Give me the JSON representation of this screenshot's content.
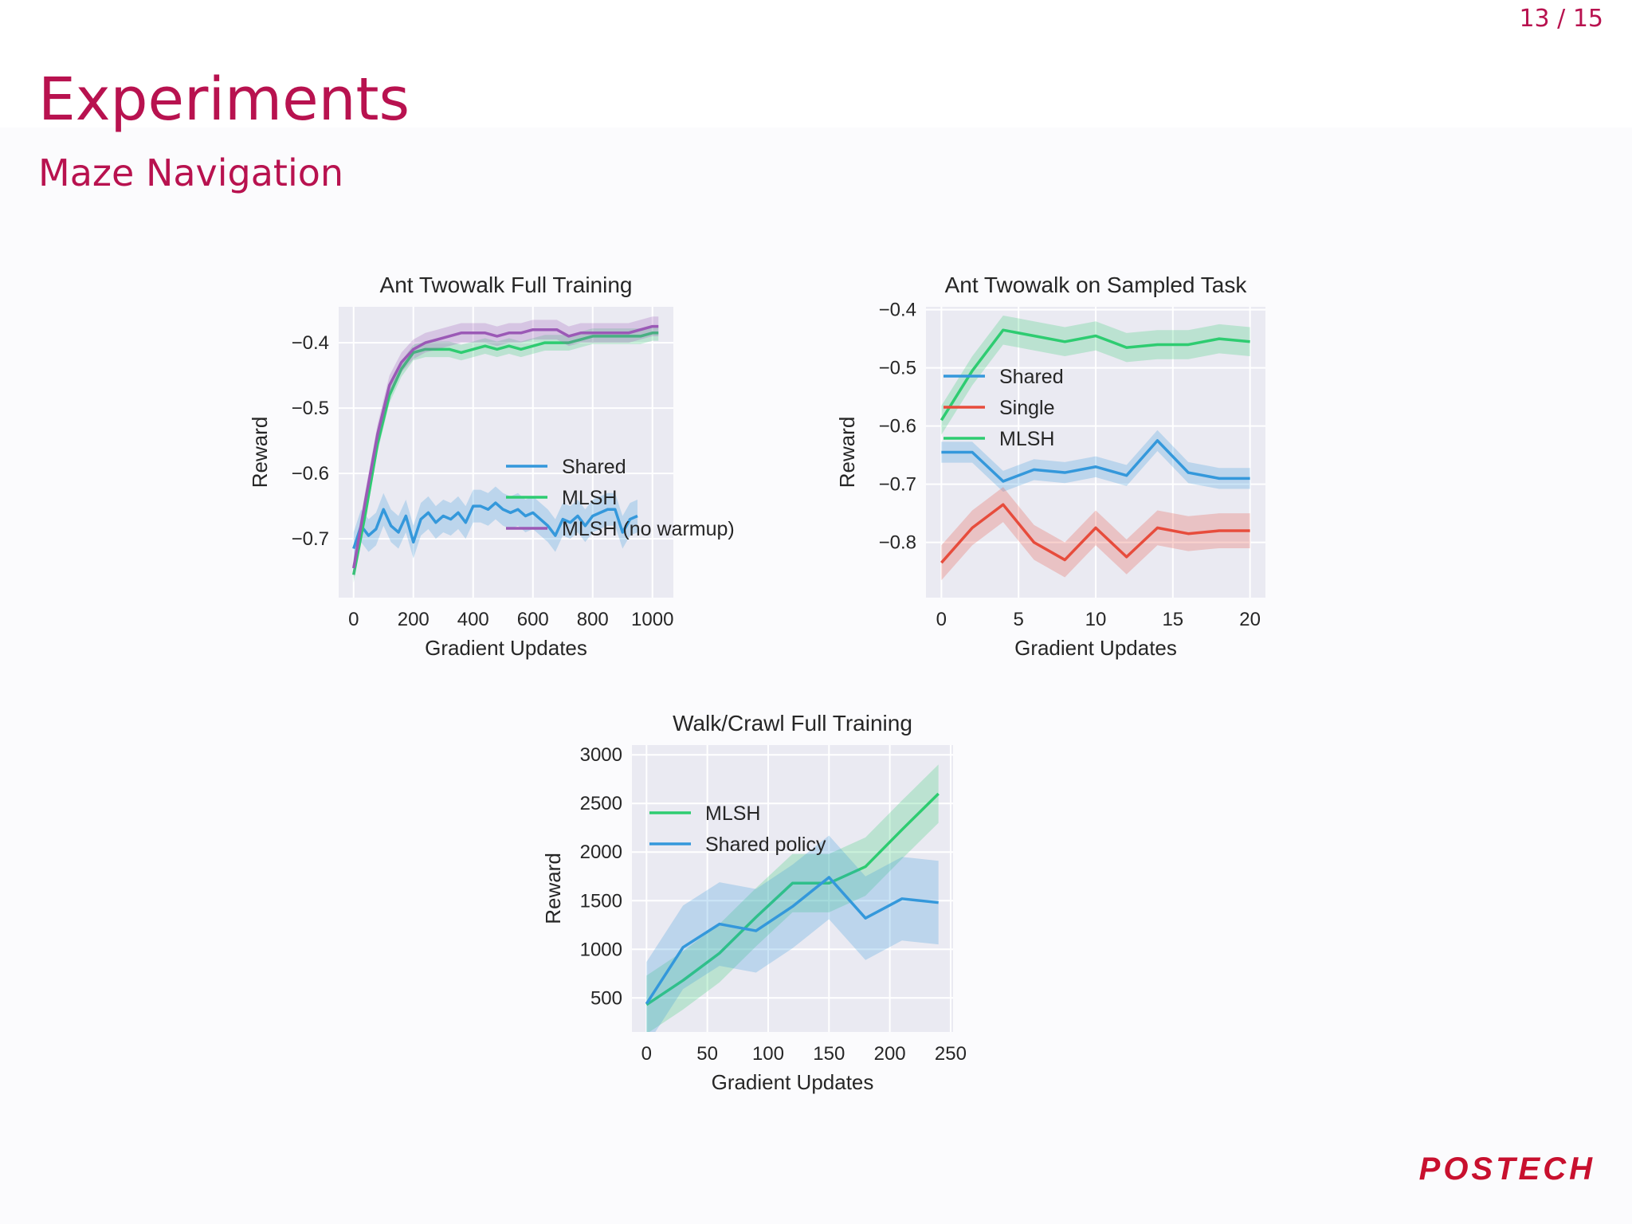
{
  "header": {
    "page_number": "13 / 15",
    "title": "Experiments",
    "subtitle": "Maze Navigation"
  },
  "footer": {
    "logo_text": "POSTECH"
  },
  "colors": {
    "shared": "#3498db",
    "mlsh": "#2ecc71",
    "mlsh_nowarmup": "#9b59b6",
    "single": "#e74c3c",
    "brand": "#b8124f"
  },
  "chart_data": [
    {
      "type": "line",
      "title": "Ant Twowalk Full Training",
      "xlabel": "Gradient Updates",
      "ylabel": "Reward",
      "xlim": [
        -50,
        1070
      ],
      "ylim": [
        -0.79,
        -0.345
      ],
      "xticks": [
        0,
        200,
        400,
        600,
        800,
        1000
      ],
      "yticks": [
        -0.4,
        -0.5,
        -0.6,
        -0.7
      ],
      "xtick_labels": [
        "0",
        "200",
        "400",
        "600",
        "800",
        "1000"
      ],
      "ytick_labels": [
        "−0.4",
        "−0.5",
        "−0.6",
        "−0.7"
      ],
      "legend": "center-right",
      "series": [
        {
          "name": "Shared",
          "color": "#3498db",
          "x": [
            0,
            25,
            50,
            75,
            100,
            125,
            150,
            175,
            200,
            225,
            250,
            275,
            300,
            325,
            350,
            375,
            400,
            425,
            450,
            475,
            500,
            525,
            550,
            575,
            600,
            625,
            650,
            675,
            700,
            725,
            750,
            775,
            800,
            825,
            850,
            875,
            900,
            925,
            950
          ],
          "y": [
            -0.715,
            -0.68,
            -0.695,
            -0.685,
            -0.655,
            -0.68,
            -0.69,
            -0.665,
            -0.705,
            -0.67,
            -0.66,
            -0.675,
            -0.665,
            -0.67,
            -0.66,
            -0.675,
            -0.65,
            -0.65,
            -0.655,
            -0.645,
            -0.655,
            -0.66,
            -0.655,
            -0.665,
            -0.66,
            -0.67,
            -0.68,
            -0.695,
            -0.67,
            -0.675,
            -0.665,
            -0.68,
            -0.665,
            -0.66,
            -0.655,
            -0.655,
            -0.69,
            -0.67,
            -0.665
          ],
          "band": 0.025
        },
        {
          "name": "MLSH",
          "color": "#2ecc71",
          "x": [
            0,
            40,
            80,
            120,
            160,
            200,
            240,
            280,
            320,
            360,
            400,
            440,
            480,
            520,
            560,
            600,
            640,
            680,
            720,
            760,
            800,
            840,
            880,
            920,
            960,
            1000,
            1020
          ],
          "y": [
            -0.755,
            -0.66,
            -0.555,
            -0.48,
            -0.44,
            -0.415,
            -0.41,
            -0.41,
            -0.41,
            -0.415,
            -0.41,
            -0.405,
            -0.41,
            -0.405,
            -0.41,
            -0.405,
            -0.4,
            -0.4,
            -0.4,
            -0.395,
            -0.39,
            -0.39,
            -0.39,
            -0.39,
            -0.39,
            -0.385,
            -0.385
          ],
          "band": 0.012
        },
        {
          "name": "MLSH (no warmup)",
          "color": "#9b59b6",
          "x": [
            0,
            40,
            80,
            120,
            160,
            200,
            240,
            280,
            320,
            360,
            400,
            440,
            480,
            520,
            560,
            600,
            640,
            680,
            720,
            760,
            800,
            840,
            880,
            920,
            960,
            1000,
            1020
          ],
          "y": [
            -0.745,
            -0.64,
            -0.54,
            -0.465,
            -0.43,
            -0.41,
            -0.4,
            -0.395,
            -0.39,
            -0.385,
            -0.385,
            -0.385,
            -0.39,
            -0.385,
            -0.385,
            -0.38,
            -0.38,
            -0.38,
            -0.39,
            -0.385,
            -0.385,
            -0.385,
            -0.385,
            -0.385,
            -0.38,
            -0.375,
            -0.375
          ],
          "band": 0.015
        }
      ]
    },
    {
      "type": "line",
      "title": "Ant Twowalk on Sampled Task",
      "xlabel": "Gradient Updates",
      "ylabel": "Reward",
      "xlim": [
        -1,
        21
      ],
      "ylim": [
        -0.895,
        -0.395
      ],
      "xticks": [
        0,
        5,
        10,
        15,
        20
      ],
      "yticks": [
        -0.4,
        -0.5,
        -0.6,
        -0.7,
        -0.8
      ],
      "xtick_labels": [
        "0",
        "5",
        "10",
        "15",
        "20"
      ],
      "ytick_labels": [
        "−0.4",
        "−0.5",
        "−0.6",
        "−0.7",
        "−0.8"
      ],
      "legend": "top-left",
      "series": [
        {
          "name": "Shared",
          "color": "#3498db",
          "x": [
            0,
            2,
            4,
            6,
            8,
            10,
            12,
            14,
            16,
            18,
            20
          ],
          "y": [
            -0.645,
            -0.645,
            -0.695,
            -0.675,
            -0.68,
            -0.67,
            -0.685,
            -0.625,
            -0.68,
            -0.69,
            -0.69
          ],
          "band": 0.018
        },
        {
          "name": "Single",
          "color": "#e74c3c",
          "x": [
            0,
            2,
            4,
            6,
            8,
            10,
            12,
            14,
            16,
            18,
            20
          ],
          "y": [
            -0.835,
            -0.775,
            -0.735,
            -0.8,
            -0.83,
            -0.775,
            -0.825,
            -0.775,
            -0.785,
            -0.78,
            -0.78
          ],
          "band": 0.03
        },
        {
          "name": "MLSH",
          "color": "#2ecc71",
          "x": [
            0,
            2,
            4,
            6,
            8,
            10,
            12,
            14,
            16,
            18,
            20
          ],
          "y": [
            -0.59,
            -0.505,
            -0.435,
            -0.445,
            -0.455,
            -0.445,
            -0.465,
            -0.46,
            -0.46,
            -0.45,
            -0.455
          ],
          "band": 0.025
        }
      ]
    },
    {
      "type": "line",
      "title": "Walk/Crawl Full Training",
      "xlabel": "Gradient Updates",
      "ylabel": "Reward",
      "xlim": [
        -12,
        252
      ],
      "ylim": [
        150,
        3100
      ],
      "xticks": [
        0,
        50,
        100,
        150,
        200,
        250
      ],
      "yticks": [
        500,
        1000,
        1500,
        2000,
        2500,
        3000
      ],
      "xtick_labels": [
        "0",
        "50",
        "100",
        "150",
        "200",
        "250"
      ],
      "ytick_labels": [
        "500",
        "1000",
        "1500",
        "2000",
        "2500",
        "3000"
      ],
      "legend": "top-left",
      "series": [
        {
          "name": "MLSH",
          "color": "#2ecc71",
          "x": [
            0,
            30,
            60,
            90,
            120,
            150,
            180,
            210,
            240
          ],
          "y": [
            430,
            680,
            960,
            1330,
            1680,
            1680,
            1850,
            2230,
            2600
          ],
          "band": 300
        },
        {
          "name": "Shared policy",
          "color": "#3498db",
          "x": [
            0,
            30,
            60,
            90,
            120,
            150,
            180,
            210,
            240
          ],
          "y": [
            440,
            1020,
            1260,
            1190,
            1440,
            1740,
            1320,
            1520,
            1480
          ],
          "band": 430
        }
      ]
    }
  ]
}
